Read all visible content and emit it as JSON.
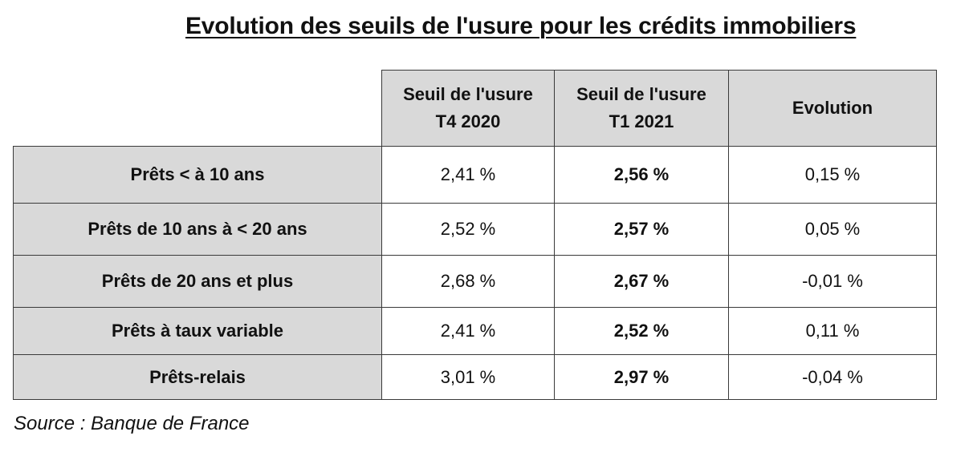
{
  "chart_data": {
    "type": "table",
    "title": "Evolution des seuils de l'usure pour les crédits immobiliers",
    "columns": [
      {
        "line1": "Seuil de l'usure",
        "line2": "T4 2020"
      },
      {
        "line1": "Seuil de l'usure",
        "line2": "T1 2021"
      },
      {
        "line1": "Evolution",
        "line2": ""
      }
    ],
    "rows": [
      {
        "label": "Prêts < à 10 ans",
        "t4_2020": "2,41 %",
        "t1_2021": "2,56 %",
        "evolution": "0,15 %"
      },
      {
        "label": "Prêts de 10 ans à < 20 ans",
        "t4_2020": "2,52 %",
        "t1_2021": "2,57 %",
        "evolution": "0,05 %"
      },
      {
        "label": "Prêts de 20 ans et plus",
        "t4_2020": "2,68 %",
        "t1_2021": "2,67 %",
        "evolution": "-0,01 %"
      },
      {
        "label": "Prêts à taux variable",
        "t4_2020": "2,41 %",
        "t1_2021": "2,52 %",
        "evolution": "0,11 %"
      },
      {
        "label": "Prêts-relais",
        "t4_2020": "3,01 %",
        "t1_2021": "2,97 %",
        "evolution": "-0,04 %"
      }
    ],
    "source": "Source : Banque de France"
  }
}
